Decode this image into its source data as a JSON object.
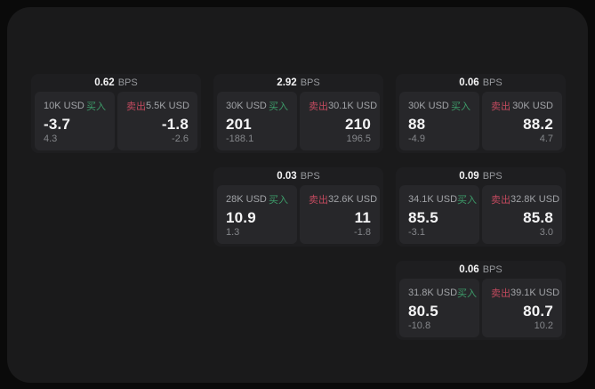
{
  "labels": {
    "bps": "BPS",
    "buy": "买入",
    "sell": "卖出"
  },
  "colors": {
    "page_bg": "#0a0a0a",
    "panel_bg": "#1a1a1b",
    "card_bg": "#1e1e20",
    "pane_bg": "#27272a",
    "price_white": "#f4f4f5",
    "label_gray": "#a1a3a7",
    "dim_gray": "#85878b",
    "unit_gray": "#97999d",
    "buy_green": "#3d9b69",
    "sell_red": "#c24a5e"
  },
  "cards": [
    {
      "col": 1,
      "row": 1,
      "bps": "0.62",
      "buy": {
        "notional": "10K USD",
        "price": "-3.7",
        "delta": "4.3"
      },
      "sell": {
        "notional": "5.5K USD",
        "price": "-1.8",
        "delta": "-2.6"
      }
    },
    {
      "col": 2,
      "row": 1,
      "bps": "2.92",
      "buy": {
        "notional": "30K USD",
        "price": "201",
        "delta": "-188.1"
      },
      "sell": {
        "notional": "30.1K USD",
        "price": "210",
        "delta": "196.5"
      }
    },
    {
      "col": 3,
      "row": 1,
      "bps": "0.06",
      "buy": {
        "notional": "30K USD",
        "price": "88",
        "delta": "-4.9"
      },
      "sell": {
        "notional": "30K USD",
        "price": "88.2",
        "delta": "4.7"
      }
    },
    {
      "col": 2,
      "row": 2,
      "bps": "0.03",
      "buy": {
        "notional": "28K USD",
        "price": "10.9",
        "delta": "1.3"
      },
      "sell": {
        "notional": "32.6K USD",
        "price": "11",
        "delta": "-1.8"
      }
    },
    {
      "col": 3,
      "row": 2,
      "bps": "0.09",
      "buy": {
        "notional": "34.1K USD",
        "price": "85.5",
        "delta": "-3.1"
      },
      "sell": {
        "notional": "32.8K USD",
        "price": "85.8",
        "delta": "3.0"
      }
    },
    {
      "col": 3,
      "row": 3,
      "bps": "0.06",
      "buy": {
        "notional": "31.8K USD",
        "price": "80.5",
        "delta": "-10.8"
      },
      "sell": {
        "notional": "39.1K USD",
        "price": "80.7",
        "delta": "10.2"
      }
    }
  ]
}
